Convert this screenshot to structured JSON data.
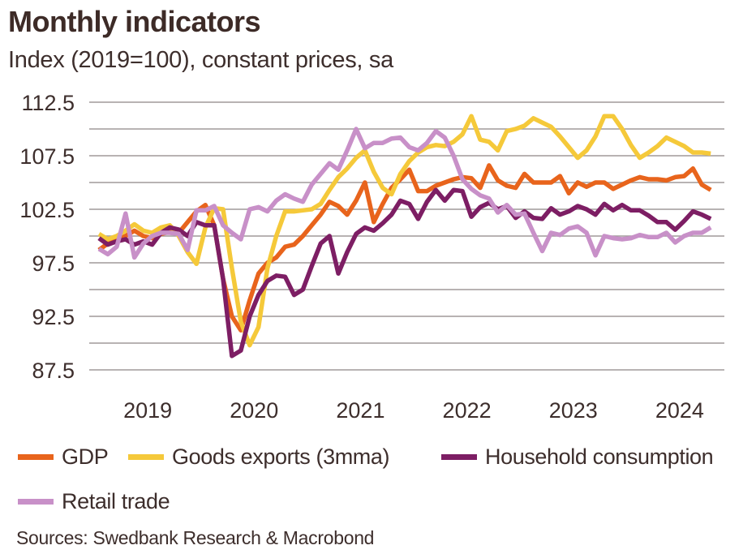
{
  "header": {
    "title": "Monthly indicators",
    "subtitle": "Index (2019=100), constant prices, sa"
  },
  "footer": {
    "source": "Sources: Swedbank Research & Macrobond"
  },
  "chart_data": {
    "type": "line",
    "title": "Monthly indicators",
    "subtitle": "Index (2019=100), constant prices, sa",
    "xlabel": "",
    "ylabel": "",
    "ylim": [
      87.5,
      112.5
    ],
    "yticks": [
      "112.5",
      "107.5",
      "102.5",
      "97.5",
      "92.5",
      "87.5"
    ],
    "ygrid_step": 2.5,
    "grid": true,
    "xtick_labels": [
      "2019",
      "2020",
      "2021",
      "2022",
      "2023",
      "2024"
    ],
    "legend_position": "bottom",
    "x": [
      "2019-01",
      "2019-02",
      "2019-03",
      "2019-04",
      "2019-05",
      "2019-06",
      "2019-07",
      "2019-08",
      "2019-09",
      "2019-10",
      "2019-11",
      "2019-12",
      "2020-01",
      "2020-02",
      "2020-03",
      "2020-04",
      "2020-05",
      "2020-06",
      "2020-07",
      "2020-08",
      "2020-09",
      "2020-10",
      "2020-11",
      "2020-12",
      "2021-01",
      "2021-02",
      "2021-03",
      "2021-04",
      "2021-05",
      "2021-06",
      "2021-07",
      "2021-08",
      "2021-09",
      "2021-10",
      "2021-11",
      "2021-12",
      "2022-01",
      "2022-02",
      "2022-03",
      "2022-04",
      "2022-05",
      "2022-06",
      "2022-07",
      "2022-08",
      "2022-09",
      "2022-10",
      "2022-11",
      "2022-12",
      "2023-01",
      "2023-02",
      "2023-03",
      "2023-04",
      "2023-05",
      "2023-06",
      "2023-07",
      "2023-08",
      "2023-09",
      "2023-10",
      "2023-11",
      "2023-12",
      "2024-01",
      "2024-02",
      "2024-03",
      "2024-04",
      "2024-05",
      "2024-06",
      "2024-07",
      "2024-08",
      "2024-09",
      "2024-10"
    ],
    "series": [
      {
        "name": "GDP",
        "color": "#e8641c",
        "values": [
          98.7,
          99.3,
          99.7,
          100.0,
          100.5,
          100.0,
          99.8,
          100.2,
          100.4,
          100.3,
          101.3,
          102.3,
          102.9,
          101.0,
          96.0,
          92.5,
          91.2,
          94.0,
          96.5,
          97.5,
          98.0,
          99.0,
          99.2,
          100.0,
          101.0,
          102.0,
          103.2,
          102.8,
          102.0,
          103.3,
          105.0,
          101.3,
          103.0,
          104.5,
          105.3,
          106.2,
          104.2,
          104.2,
          104.7,
          105.0,
          105.3,
          105.5,
          105.4,
          104.5,
          106.6,
          105.2,
          104.7,
          104.5,
          105.8,
          105.0,
          105.0,
          105.0,
          105.6,
          104.0,
          105.0,
          104.6,
          105.0,
          105.0,
          104.4,
          104.8,
          105.2,
          105.5,
          105.3,
          105.3,
          105.2,
          105.5,
          105.6,
          106.3,
          104.8,
          104.3
        ]
      },
      {
        "name": "Goods exports (3mma)",
        "color": "#f5c93a",
        "values": [
          100.2,
          99.7,
          100.0,
          100.5,
          101.1,
          100.5,
          100.3,
          100.8,
          101.0,
          100.0,
          98.5,
          97.4,
          100.8,
          102.6,
          102.5,
          97.0,
          92.0,
          89.8,
          91.5,
          97.0,
          100.0,
          102.3,
          102.3,
          102.4,
          102.5,
          103.0,
          104.3,
          105.5,
          106.3,
          107.3,
          108.0,
          106.0,
          104.5,
          103.9,
          105.8,
          107.0,
          107.8,
          108.3,
          108.5,
          108.4,
          108.8,
          109.5,
          111.2,
          109.0,
          108.8,
          108.0,
          109.8,
          110.0,
          110.3,
          111.0,
          110.6,
          110.2,
          109.3,
          108.3,
          107.3,
          108.0,
          109.3,
          111.2,
          111.2,
          110.0,
          108.5,
          107.3,
          107.8,
          108.4,
          109.2,
          108.8,
          108.4,
          107.8,
          107.8,
          107.7
        ]
      },
      {
        "name": "Household consumption",
        "color": "#7d1e64",
        "values": [
          99.8,
          99.2,
          99.5,
          99.7,
          99.2,
          99.5,
          99.2,
          100.3,
          100.8,
          100.6,
          100.0,
          101.3,
          101.0,
          101.0,
          96.0,
          88.8,
          89.3,
          92.5,
          94.5,
          95.8,
          96.3,
          96.2,
          94.5,
          95.0,
          97.2,
          99.3,
          100.0,
          96.5,
          98.5,
          100.2,
          100.8,
          100.5,
          101.2,
          102.0,
          103.3,
          103.0,
          101.6,
          103.2,
          104.3,
          103.3,
          104.3,
          104.2,
          101.8,
          102.7,
          103.1,
          102.5,
          102.8,
          101.7,
          102.3,
          101.7,
          101.6,
          102.6,
          102.0,
          102.3,
          102.8,
          102.5,
          102.0,
          103.0,
          102.4,
          102.9,
          102.4,
          102.4,
          101.9,
          101.3,
          101.3,
          100.6,
          101.4,
          102.3,
          102.0,
          101.6
        ]
      },
      {
        "name": "Retail trade",
        "color": "#c890c8",
        "values": [
          98.8,
          98.3,
          99.0,
          102.1,
          98.0,
          99.3,
          100.0,
          100.3,
          100.3,
          100.2,
          98.7,
          102.4,
          102.4,
          102.8,
          101.0,
          100.3,
          99.7,
          102.5,
          102.7,
          102.3,
          103.3,
          103.9,
          103.5,
          103.2,
          104.8,
          105.8,
          106.8,
          106.2,
          108.0,
          110.0,
          108.2,
          108.7,
          108.7,
          109.1,
          109.2,
          108.3,
          108.0,
          108.7,
          109.8,
          109.2,
          107.5,
          105.3,
          104.4,
          103.8,
          103.5,
          102.2,
          102.9,
          102.0,
          102.1,
          100.3,
          98.6,
          100.3,
          100.1,
          100.7,
          100.9,
          100.3,
          98.2,
          100.0,
          99.8,
          99.7,
          99.8,
          100.1,
          99.9,
          99.9,
          100.3,
          99.4,
          100.0,
          100.3,
          100.3,
          100.8
        ]
      }
    ]
  }
}
